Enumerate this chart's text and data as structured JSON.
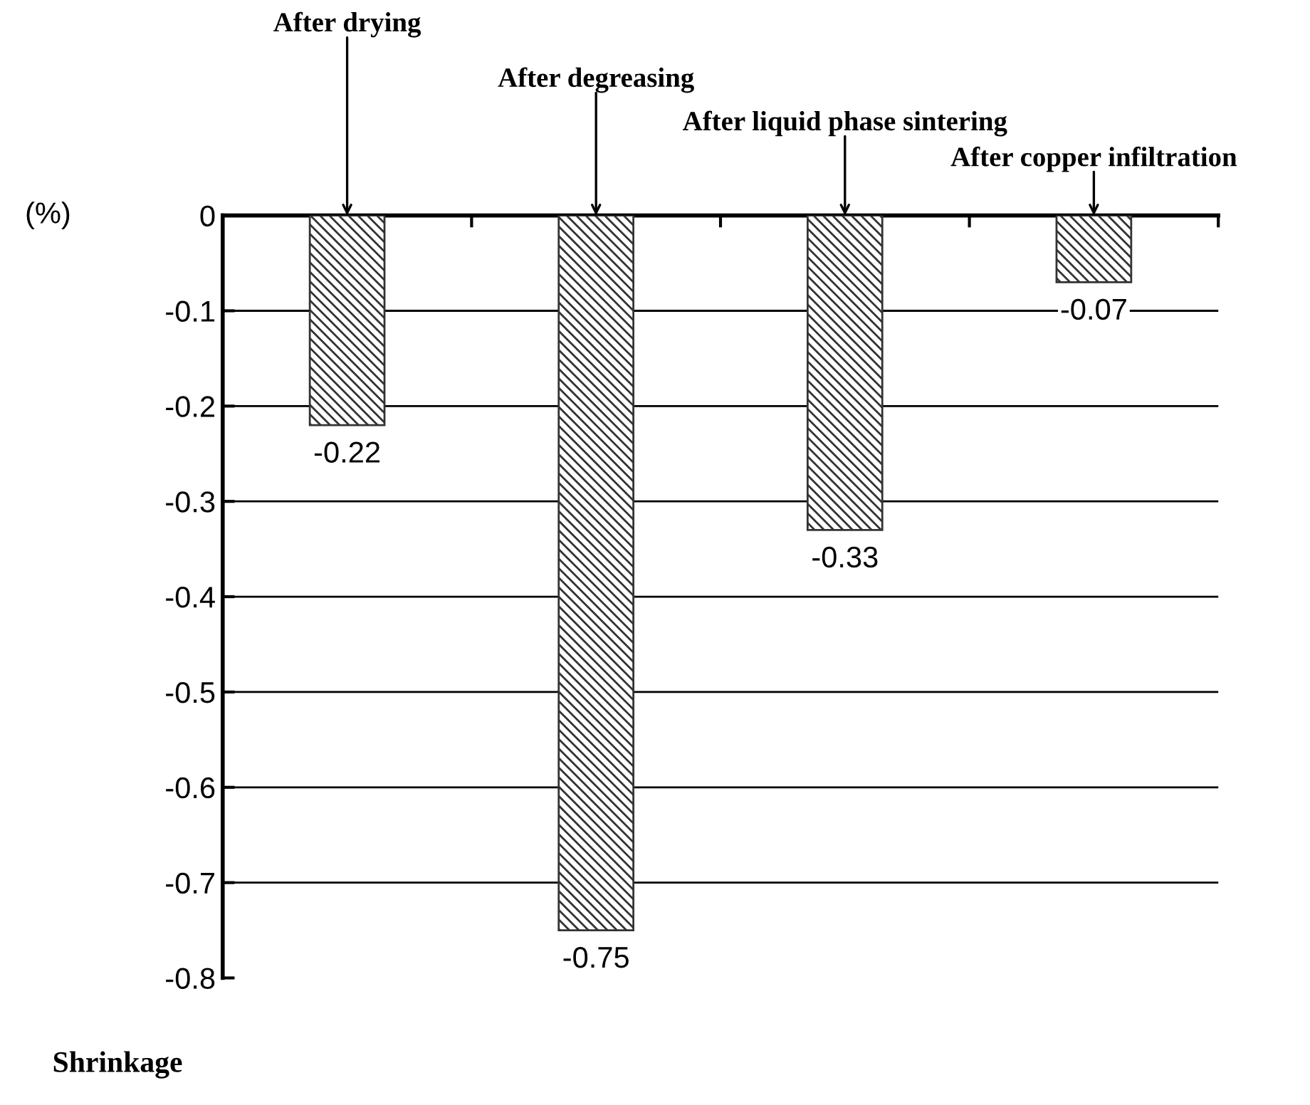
{
  "chart_data": {
    "type": "bar",
    "title": "Shrinkage",
    "ylabel": "(%)",
    "categories": [
      null,
      null,
      null,
      null
    ],
    "annotations": [
      "After drying",
      "After degreasing",
      "After liquid phase sintering",
      "After copper infiltration"
    ],
    "values": [
      -0.22,
      -0.75,
      -0.33,
      -0.07
    ],
    "color": "#333333",
    "ylim": [
      -0.8,
      0
    ],
    "yticks": [
      0,
      -0.1,
      -0.2,
      -0.3,
      -0.4,
      -0.5,
      -0.6,
      -0.7,
      -0.8
    ],
    "grid": "y",
    "data_labels": true
  }
}
